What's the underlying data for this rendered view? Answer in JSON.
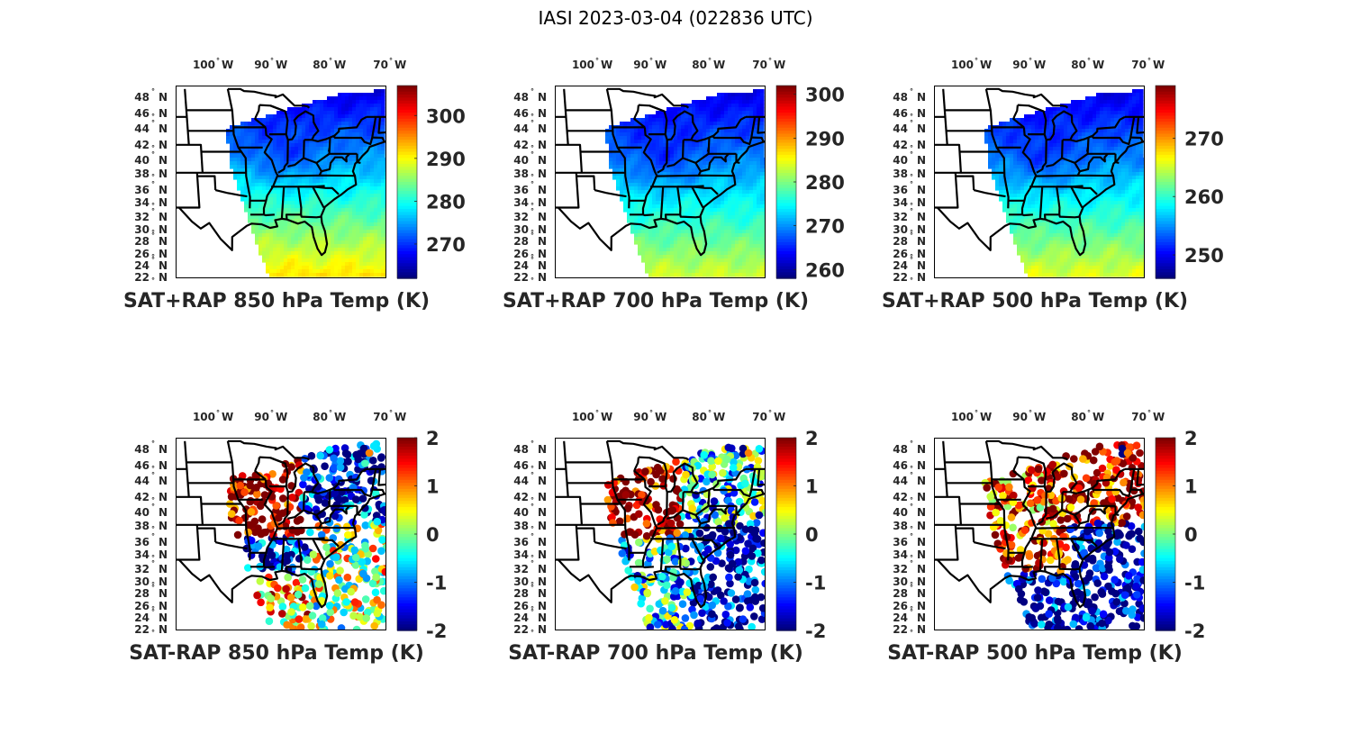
{
  "figure": {
    "suptitle": "IASI 2023-03-04 (022836 UTC)"
  },
  "chart_data": [
    {
      "type": "heatmap",
      "title": "SAT+RAP 850 hPa Temp (K)",
      "field": "sum",
      "level_hpa": 850,
      "xticks": [
        "100",
        "90",
        "80",
        "70"
      ],
      "xtick_suffix": "W",
      "yticks": [
        "48",
        "46",
        "44",
        "42",
        "40",
        "38",
        "36",
        "34",
        "32",
        "30",
        "28",
        "26",
        "24",
        "22"
      ],
      "ytick_suffix": "N",
      "lon_range": [
        -107,
        -67
      ],
      "lat_range": [
        22,
        49
      ],
      "colorbar": {
        "colormap": "jet",
        "clim": [
          262,
          307
        ],
        "ticks": [
          270,
          280,
          290,
          300
        ]
      },
      "value_gradient": {
        "north": 266,
        "south": 292
      }
    },
    {
      "type": "heatmap",
      "title": "SAT+RAP 700 hPa Temp (K)",
      "field": "sum",
      "level_hpa": 700,
      "xticks": [
        "100",
        "90",
        "80",
        "70"
      ],
      "xtick_suffix": "W",
      "yticks": [
        "48",
        "46",
        "44",
        "42",
        "40",
        "38",
        "36",
        "34",
        "32",
        "30",
        "28",
        "26",
        "24",
        "22"
      ],
      "ytick_suffix": "N",
      "lon_range": [
        -107,
        -67
      ],
      "lat_range": [
        22,
        49
      ],
      "colorbar": {
        "colormap": "jet",
        "clim": [
          258,
          302
        ],
        "ticks": [
          260,
          270,
          280,
          290,
          300
        ]
      },
      "value_gradient": {
        "north": 262,
        "south": 284
      }
    },
    {
      "type": "heatmap",
      "title": "SAT+RAP 500 hPa Temp (K)",
      "field": "sum",
      "level_hpa": 500,
      "xticks": [
        "100",
        "90",
        "80",
        "70"
      ],
      "xtick_suffix": "W",
      "yticks": [
        "48",
        "46",
        "44",
        "42",
        "40",
        "38",
        "36",
        "34",
        "32",
        "30",
        "28",
        "26",
        "24",
        "22"
      ],
      "ytick_suffix": "N",
      "lon_range": [
        -107,
        -67
      ],
      "lat_range": [
        22,
        49
      ],
      "colorbar": {
        "colormap": "jet",
        "clim": [
          246,
          279
        ],
        "ticks": [
          250,
          260,
          270
        ]
      },
      "value_gradient": {
        "north": 249,
        "south": 266
      }
    },
    {
      "type": "scatter",
      "title": "SAT-RAP 850 hPa Temp (K)",
      "field": "difference",
      "level_hpa": 850,
      "xticks": [
        "100",
        "90",
        "80",
        "70"
      ],
      "xtick_suffix": "W",
      "yticks": [
        "48",
        "46",
        "44",
        "42",
        "40",
        "38",
        "36",
        "34",
        "32",
        "30",
        "28",
        "26",
        "24",
        "22"
      ],
      "ytick_suffix": "N",
      "lon_range": [
        -107,
        -67
      ],
      "lat_range": [
        22,
        49
      ],
      "colorbar": {
        "colormap": "jet",
        "clim": [
          -2,
          2
        ],
        "ticks": [
          2,
          1,
          0,
          -1,
          -2
        ]
      },
      "regional_bias": {
        "upper_midwest": 2,
        "southeast_land": -1.5,
        "gulf": 0.8,
        "atlantic": 0.2
      }
    },
    {
      "type": "scatter",
      "title": "SAT-RAP 700 hPa Temp (K)",
      "field": "difference",
      "level_hpa": 700,
      "xticks": [
        "100",
        "90",
        "80",
        "70"
      ],
      "xtick_suffix": "W",
      "yticks": [
        "48",
        "46",
        "44",
        "42",
        "40",
        "38",
        "36",
        "34",
        "32",
        "30",
        "28",
        "26",
        "24",
        "22"
      ],
      "ytick_suffix": "N",
      "lon_range": [
        -107,
        -67
      ],
      "lat_range": [
        22,
        49
      ],
      "colorbar": {
        "colormap": "jet",
        "clim": [
          -2,
          2
        ],
        "ticks": [
          2,
          1,
          0,
          -1,
          -2
        ]
      },
      "regional_bias": {
        "upper_midwest": 2,
        "southeast_land": -0.6,
        "gulf": -0.6,
        "atlantic": -1.8
      }
    },
    {
      "type": "scatter",
      "title": "SAT-RAP 500 hPa Temp (K)",
      "field": "difference",
      "level_hpa": 500,
      "xticks": [
        "100",
        "90",
        "80",
        "70"
      ],
      "xtick_suffix": "W",
      "yticks": [
        "48",
        "46",
        "44",
        "42",
        "40",
        "38",
        "36",
        "34",
        "32",
        "30",
        "28",
        "26",
        "24",
        "22"
      ],
      "ytick_suffix": "N",
      "lon_range": [
        -107,
        -67
      ],
      "lat_range": [
        22,
        49
      ],
      "colorbar": {
        "colormap": "jet",
        "clim": [
          -2,
          2
        ],
        "ticks": [
          2,
          1,
          0,
          -1,
          -2
        ]
      },
      "regional_bias": {
        "upper_midwest": 1.2,
        "southeast_land": 1.8,
        "gulf": -1.8,
        "atlantic": -1.9
      }
    }
  ]
}
